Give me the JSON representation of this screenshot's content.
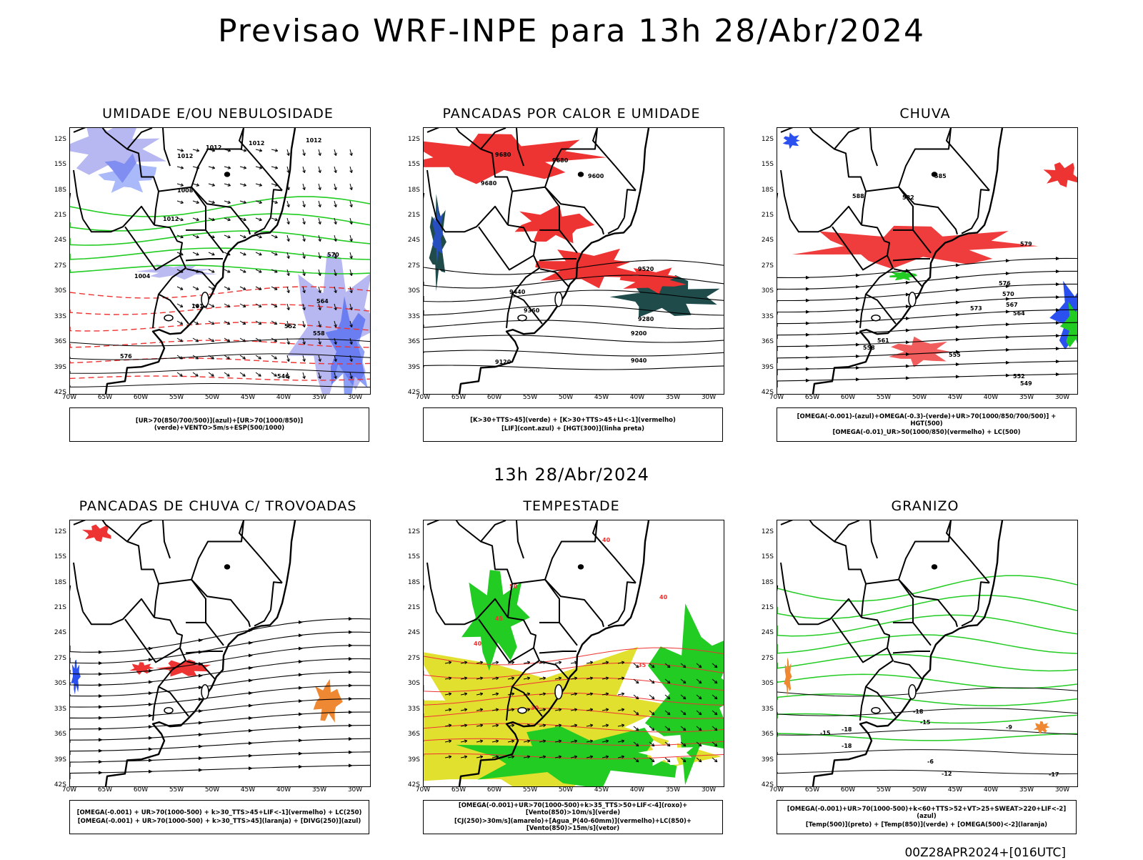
{
  "title": "Previsao WRF-INPE  para 13h 28/Abr/2024",
  "subtitle": "13h 28/Abr/2024",
  "footer": "00Z28APR2024+[016UTC]",
  "lat_labels": [
    "12S",
    "15S",
    "18S",
    "21S",
    "24S",
    "27S",
    "30S",
    "33S",
    "36S",
    "39S",
    "42S"
  ],
  "lon_labels": [
    "70W",
    "65W",
    "60W",
    "55W",
    "50W",
    "45W",
    "40W",
    "35W",
    "30W"
  ],
  "colors": {
    "blue": "#2b50f0",
    "light_blue": "#aaaaee",
    "green": "#22cc22",
    "red": "#ee3333",
    "dark_teal": "#1f4b4b",
    "yellow": "#e2e02e",
    "orange": "#ee8833"
  },
  "panels": [
    {
      "id": "umidade",
      "title": "UMIDADE E/OU NEBULOSIDADE",
      "legend": [
        "[UR>70(850/700/500)](azul)+[UR>70(1000/850)](verde)+VENTO>5m/s+ESP(500/1000)"
      ],
      "contour_labels": [
        "1012",
        "1012",
        "1012",
        "1012",
        "1012",
        "1008",
        "1004",
        "1016",
        "576",
        "570",
        "564",
        "558",
        "552",
        "546"
      ]
    },
    {
      "id": "pancadas-calor",
      "title": "PANCADAS POR CALOR E UMIDADE",
      "legend": [
        "[K>30+TTS>45](verde) + [K>30+TTS>45+LI<-1](vermelho)",
        "[LIF](cont.azul) + [HGT(300)](linha preta)"
      ],
      "contour_labels": [
        "9680",
        "9680",
        "9680",
        "9600",
        "9520",
        "9440",
        "9360",
        "9280",
        "9200",
        "9120",
        "9040"
      ]
    },
    {
      "id": "chuva",
      "title": "CHUVA",
      "legend": [
        "[OMEGA(-0.001)-(azul)+OMEGA(-0.3)-(verde)+UR>70(1000/850/700/500)] + HGT(500)",
        "[OMEGA(-0.01)_UR>50(1000/850)(vermelho) + LC(500)"
      ],
      "contour_labels": [
        "588",
        "585",
        "582",
        "579",
        "576",
        "573",
        "570",
        "567",
        "564",
        "561",
        "558",
        "555",
        "552",
        "549"
      ]
    },
    {
      "id": "trovoadas",
      "title": "PANCADAS DE CHUVA C/ TROVOADAS",
      "legend": [
        "[OMEGA(-0.001) + UR>70(1000-500) + k>30_TTS>45+LIF<-1](vermelho) + LC(250)",
        "[OMEGA(-0.001) + UR>70(1000-500) + k>30_TTS>45](laranja) + [DIVG(250)](azul)"
      ],
      "contour_labels": []
    },
    {
      "id": "tempestade",
      "title": "TEMPESTADE",
      "legend": [
        "[OMEGA(-0.001)+UR>70(1000-500)+k>35_TTS>50+LIF<-4](roxo)+[Vento(850)>10m/s](verde)",
        "[CJ(250)>30m/s](amarelo)+[Agua_P(40-60mm)](vermelho)+LC(850)+[Vento(850)>15m/s](vetor)"
      ],
      "contour_labels": [
        "50",
        "45",
        "40",
        "40",
        "40",
        "35",
        "30"
      ]
    },
    {
      "id": "granizo",
      "title": "GRANIZO",
      "legend": [
        "[OMEGA(-0.001)+UR>70(1000-500)+k<60+TTS>52+VT>25+SWEAT>220+LIF<-2](azul)",
        "[Temp(500)](preto) + [Temp(850)](verde) + [OMEGA(500)<-2](laranja)"
      ],
      "contour_labels": [
        "-18",
        "-15",
        "-18",
        "-18",
        "-15",
        "-17",
        "-6",
        "-9",
        "-12"
      ]
    }
  ]
}
